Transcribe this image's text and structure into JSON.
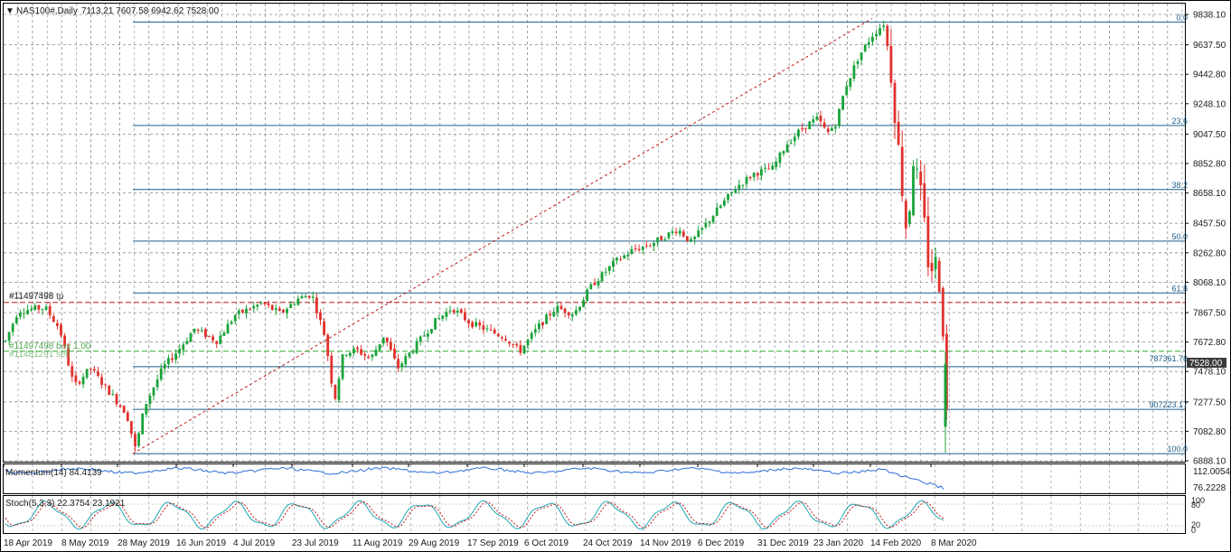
{
  "header": {
    "symbol": "NAS100#,Daily",
    "ohlc": "7113.21 7607.58 6942.62 7528.00"
  },
  "price_axis": {
    "ticks": [
      "9838.10",
      "9637.50",
      "9442.80",
      "9248.10",
      "9047.50",
      "8852.80",
      "8658.10",
      "8457.50",
      "8262.80",
      "8068.10",
      "7867.50",
      "7672.80",
      "7478.10",
      "7277.50",
      "7082.80",
      "6888.10"
    ],
    "current_price": "7528.00"
  },
  "time_axis": {
    "labels": [
      "18 Apr 2019",
      "8 May 2019",
      "28 May 2019",
      "16 Jun 2019",
      "4 Jul 2019",
      "23 Jul 2019",
      "11 Aug 2019",
      "29 Aug 2019",
      "17 Sep 2019",
      "6 Oct 2019",
      "24 Oct 2019",
      "14 Nov 2019",
      "6 Dec 2019",
      "31 Dec 2019",
      "23 Jan 2020",
      "14 Feb 2020",
      "8 Mar 2020"
    ]
  },
  "fibonacci": {
    "levels": [
      {
        "label": "0.0",
        "price": 9788
      },
      {
        "label": "23.6",
        "price": 9104
      },
      {
        "label": "38.2",
        "price": 8681
      },
      {
        "label": "50.0",
        "price": 8340
      },
      {
        "label": "61.8",
        "price": 7997
      },
      {
        "label": "78.6",
        "price": 7510
      },
      {
        "label": "90",
        "price": 7228
      },
      {
        "label": "100.0",
        "price": 6935
      }
    ],
    "price_labels": [
      "787361.78",
      "907223.17"
    ]
  },
  "trade_lines": {
    "tp_label": "#11497498 tp",
    "tp_label_overlap": "#11497598",
    "tp_price": 7935,
    "entry_label_1": "#11497498 buy 1.00",
    "entry_label_2": "#11481291 sell",
    "entry_price": 7612
  },
  "indicators": {
    "momentum_label": "Momentum(14) 84.4139",
    "momentum_ticks": [
      "112.0054",
      "76.2228"
    ],
    "stoch_label": "Stoch(5,3,3) 22.3754 23.1921",
    "stoch_ticks": [
      "100",
      "80",
      "20",
      "0"
    ]
  },
  "colors": {
    "bull": "#1aa33a",
    "bear": "#e0312c",
    "grid": "#8a8a8a",
    "fib": "#1d5e8a",
    "tp": "#c01818",
    "entry": "#33aa33",
    "momentum": "#2a6fd6",
    "stoch_main": "#1ea7b5",
    "stoch_signal": "#c01818"
  },
  "chart_data": {
    "type": "candlestick",
    "title": "NAS100#,Daily",
    "price_range": [
      6888.1,
      9838.1
    ],
    "series_anchors": [
      {
        "date": "18 Apr 2019",
        "close": 7680
      },
      {
        "date": "8 May 2019",
        "close": 7400
      },
      {
        "date": "28 May 2019",
        "close": 6960
      },
      {
        "date": "16 Jun 2019",
        "close": 7720
      },
      {
        "date": "4 Jul 2019",
        "close": 7970
      },
      {
        "date": "23 Jul 2019",
        "close": 7950
      },
      {
        "date": "11 Aug 2019",
        "close": 7550
      },
      {
        "date": "29 Aug 2019",
        "close": 7780
      },
      {
        "date": "17 Sep 2019",
        "close": 7860
      },
      {
        "date": "6 Oct 2019",
        "close": 7900
      },
      {
        "date": "24 Oct 2019",
        "close": 8150
      },
      {
        "date": "14 Nov 2019",
        "close": 8330
      },
      {
        "date": "6 Dec 2019",
        "close": 8420
      },
      {
        "date": "31 Dec 2019",
        "close": 8760
      },
      {
        "date": "23 Jan 2020",
        "close": 9180
      },
      {
        "date": "14 Feb 2020",
        "close": 9560
      },
      {
        "date": "8 Mar 2020",
        "close": 7528
      }
    ],
    "last_bar": {
      "open": 7113.21,
      "high": 7607.58,
      "low": 6942.62,
      "close": 7528.0
    }
  }
}
